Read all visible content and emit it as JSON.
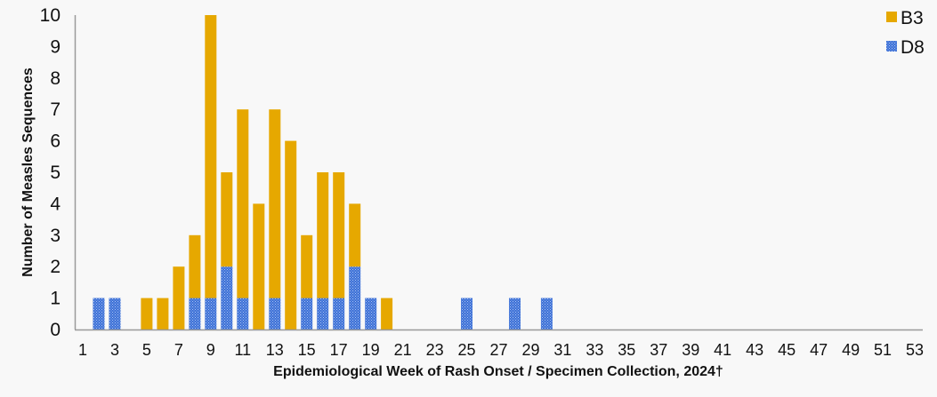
{
  "chart_data": {
    "type": "bar",
    "stacked": true,
    "title": "",
    "xlabel": "Epidemiological Week of Rash Onset / Specimen Collection, 2024†",
    "ylabel": "Number of Measles Sequences",
    "ylim": [
      0,
      10
    ],
    "yticks": [
      0,
      1,
      2,
      3,
      4,
      5,
      6,
      7,
      8,
      9,
      10
    ],
    "xlim": [
      1,
      53
    ],
    "xtick_labels": [
      "1",
      "3",
      "5",
      "7",
      "9",
      "11",
      "13",
      "15",
      "17",
      "19",
      "21",
      "23",
      "25",
      "27",
      "29",
      "31",
      "33",
      "35",
      "37",
      "39",
      "41",
      "43",
      "45",
      "47",
      "49",
      "51",
      "53"
    ],
    "grid": false,
    "legend_position": "top-right",
    "categories": [
      1,
      2,
      3,
      4,
      5,
      6,
      7,
      8,
      9,
      10,
      11,
      12,
      13,
      14,
      15,
      16,
      17,
      18,
      19,
      20,
      21,
      22,
      23,
      24,
      25,
      26,
      27,
      28,
      29,
      30,
      31,
      32,
      33,
      34,
      35,
      36,
      37,
      38,
      39,
      40,
      41,
      42,
      43,
      44,
      45,
      46,
      47,
      48,
      49,
      50,
      51,
      52,
      53
    ],
    "series": [
      {
        "name": "D8",
        "color": "#3b6fd6",
        "pattern": "dotted",
        "values": [
          0,
          1,
          1,
          0,
          0,
          0,
          0,
          1,
          1,
          2,
          1,
          0,
          1,
          0,
          1,
          1,
          1,
          2,
          1,
          0,
          0,
          0,
          0,
          0,
          1,
          0,
          0,
          1,
          0,
          1,
          0,
          0,
          0,
          0,
          0,
          0,
          0,
          0,
          0,
          0,
          0,
          0,
          0,
          0,
          0,
          0,
          0,
          0,
          0,
          0,
          0,
          0,
          0
        ]
      },
      {
        "name": "B3",
        "color": "#e6a800",
        "pattern": "solid",
        "values": [
          0,
          0,
          0,
          0,
          1,
          1,
          2,
          2,
          9,
          3,
          6,
          4,
          6,
          6,
          2,
          4,
          4,
          2,
          0,
          1,
          0,
          0,
          0,
          0,
          0,
          0,
          0,
          0,
          0,
          0,
          0,
          0,
          0,
          0,
          0,
          0,
          0,
          0,
          0,
          0,
          0,
          0,
          0,
          0,
          0,
          0,
          0,
          0,
          0,
          0,
          0,
          0,
          0
        ]
      }
    ],
    "totals": [
      0,
      1,
      1,
      0,
      1,
      1,
      2,
      3,
      10,
      5,
      7,
      4,
      7,
      6,
      3,
      5,
      5,
      4,
      1,
      1,
      0,
      0,
      0,
      0,
      1,
      0,
      0,
      1,
      0,
      1,
      0,
      0,
      0,
      0,
      0,
      0,
      0,
      0,
      0,
      0,
      0,
      0,
      0,
      0,
      0,
      0,
      0,
      0,
      0,
      0,
      0,
      0,
      0
    ]
  },
  "legend": {
    "items": [
      {
        "label": "B3",
        "color": "#e6a800"
      },
      {
        "label": "D8",
        "color": "#3b6fd6"
      }
    ]
  },
  "colors": {
    "background": "#f8f8f8",
    "axis": "#9a9a9a"
  }
}
